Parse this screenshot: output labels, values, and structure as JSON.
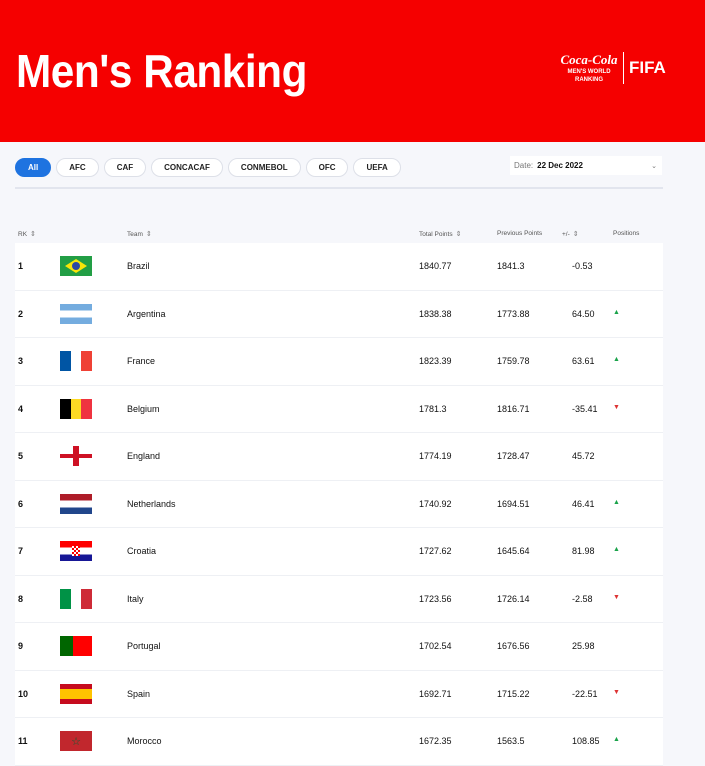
{
  "header": {
    "title": "Men's Ranking",
    "logo": {
      "brand": "Coca-Cola",
      "sub": "MEN'S WORLD RANKING",
      "org": "FIFA"
    }
  },
  "filters": [
    "All",
    "AFC",
    "CAF",
    "CONCACAF",
    "CONMEBOL",
    "OFC",
    "UEFA"
  ],
  "active_filter": "All",
  "date": {
    "label": "Date:",
    "value": "22 Dec 2022"
  },
  "columns": {
    "rk": "RK",
    "team": "Team",
    "total": "Total Points",
    "previous": "Previous Points",
    "diff": "+/-",
    "positions": "Positions"
  },
  "colors": {
    "accent": "#f50000",
    "active": "#1e73e0",
    "up": "#1aa34a",
    "down": "#dd3333"
  },
  "rows": [
    {
      "rk": "1",
      "team": "Brazil",
      "total": "1840.77",
      "previous": "1841.3",
      "diff": "-0.53",
      "move": ""
    },
    {
      "rk": "2",
      "team": "Argentina",
      "total": "1838.38",
      "previous": "1773.88",
      "diff": "64.50",
      "move": "up"
    },
    {
      "rk": "3",
      "team": "France",
      "total": "1823.39",
      "previous": "1759.78",
      "diff": "63.61",
      "move": "up"
    },
    {
      "rk": "4",
      "team": "Belgium",
      "total": "1781.3",
      "previous": "1816.71",
      "diff": "-35.41",
      "move": "down"
    },
    {
      "rk": "5",
      "team": "England",
      "total": "1774.19",
      "previous": "1728.47",
      "diff": "45.72",
      "move": ""
    },
    {
      "rk": "6",
      "team": "Netherlands",
      "total": "1740.92",
      "previous": "1694.51",
      "diff": "46.41",
      "move": "up"
    },
    {
      "rk": "7",
      "team": "Croatia",
      "total": "1727.62",
      "previous": "1645.64",
      "diff": "81.98",
      "move": "up"
    },
    {
      "rk": "8",
      "team": "Italy",
      "total": "1723.56",
      "previous": "1726.14",
      "diff": "-2.58",
      "move": "down"
    },
    {
      "rk": "9",
      "team": "Portugal",
      "total": "1702.54",
      "previous": "1676.56",
      "diff": "25.98",
      "move": ""
    },
    {
      "rk": "10",
      "team": "Spain",
      "total": "1692.71",
      "previous": "1715.22",
      "diff": "-22.51",
      "move": "down"
    },
    {
      "rk": "11",
      "team": "Morocco",
      "total": "1672.35",
      "previous": "1563.5",
      "diff": "108.85",
      "move": "up"
    }
  ]
}
